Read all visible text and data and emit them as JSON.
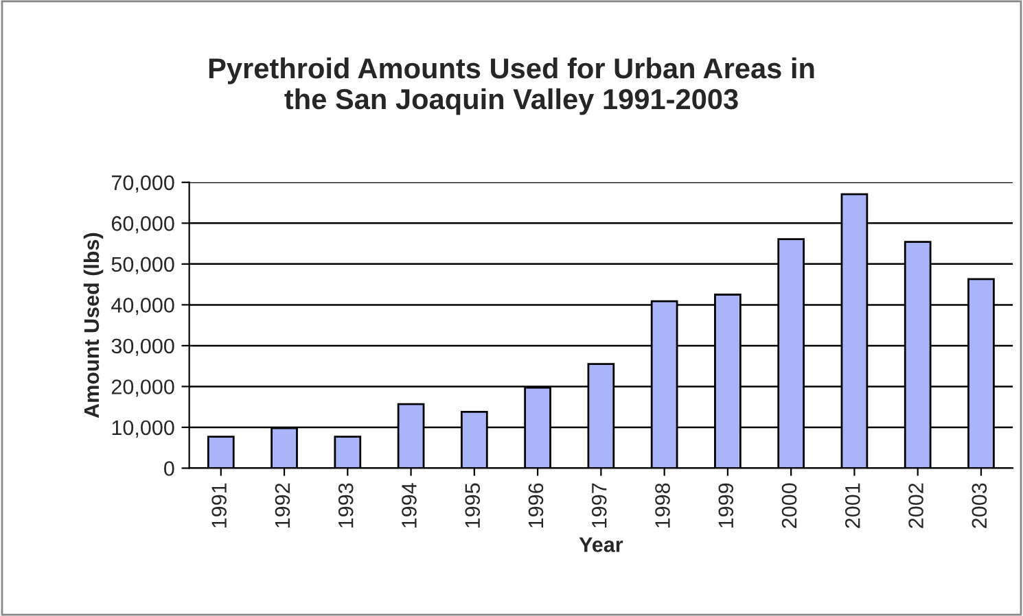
{
  "chart_data": {
    "type": "bar",
    "title": "Pyrethroid Amounts Used for Urban Areas in\nthe San Joaquin Valley 1991-2003",
    "xlabel": "Year",
    "ylabel": "Amount Used (lbs)",
    "categories": [
      "1991",
      "1992",
      "1993",
      "1994",
      "1995",
      "1996",
      "1997",
      "1998",
      "1999",
      "2000",
      "2001",
      "2002",
      "2003"
    ],
    "values": [
      7700,
      9800,
      7700,
      15700,
      13800,
      19700,
      25500,
      40900,
      42500,
      56100,
      67100,
      55400,
      46300
    ],
    "color": "#aab4f8",
    "ylim": [
      0,
      70000
    ],
    "yticks": [
      {
        "value": 0,
        "label": "0"
      },
      {
        "value": 10000,
        "label": "10,000"
      },
      {
        "value": 20000,
        "label": "20,000"
      },
      {
        "value": 30000,
        "label": "30,000"
      },
      {
        "value": 40000,
        "label": "40,000"
      },
      {
        "value": 50000,
        "label": "50,000"
      },
      {
        "value": 60000,
        "label": "60,000"
      },
      {
        "value": 70000,
        "label": "70,000"
      }
    ],
    "grid": "y",
    "legend": false
  }
}
